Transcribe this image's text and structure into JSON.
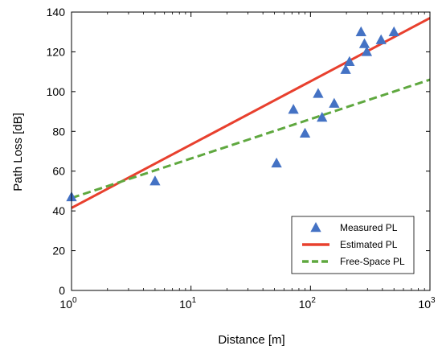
{
  "chart_data": {
    "type": "scatter",
    "xscale": "log",
    "xlabel": "Distance [m]",
    "ylabel": "Path Loss [dB]",
    "xlim": [
      1,
      1000
    ],
    "ylim": [
      0,
      140
    ],
    "xticks": [
      {
        "value": 1,
        "base": "10",
        "exp": "0"
      },
      {
        "value": 10,
        "base": "10",
        "exp": "1"
      },
      {
        "value": 100,
        "base": "10",
        "exp": "2"
      },
      {
        "value": 1000,
        "base": "10",
        "exp": "3"
      }
    ],
    "yticks": [
      0,
      20,
      40,
      60,
      80,
      100,
      120,
      140
    ],
    "grid": false,
    "legend_position": "bottom-right",
    "series": [
      {
        "name": "Measured PL",
        "kind": "scatter",
        "marker": "triangle",
        "color": "#4472C4",
        "points": [
          [
            1,
            47
          ],
          [
            5,
            55
          ],
          [
            52,
            64
          ],
          [
            72,
            91
          ],
          [
            90,
            79
          ],
          [
            116,
            99
          ],
          [
            125,
            87
          ],
          [
            158,
            94
          ],
          [
            197,
            111
          ],
          [
            212,
            115
          ],
          [
            265,
            130
          ],
          [
            283,
            124
          ],
          [
            296,
            120
          ],
          [
            390,
            126
          ],
          [
            500,
            130
          ]
        ]
      },
      {
        "name": "Estimated PL",
        "kind": "line",
        "color": "#E8402E",
        "dash": "solid",
        "points": [
          [
            1,
            41.5
          ],
          [
            1000,
            137
          ]
        ]
      },
      {
        "name": "Free-Space PL",
        "kind": "line",
        "color": "#5FA83F",
        "dash": "dashed",
        "points": [
          [
            1,
            46.5
          ],
          [
            1000,
            106
          ]
        ]
      }
    ]
  }
}
